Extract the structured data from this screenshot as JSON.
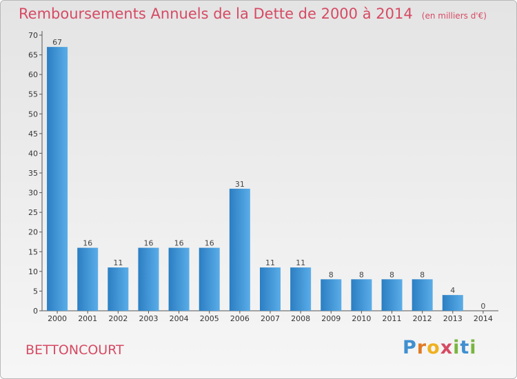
{
  "chart_data": {
    "type": "bar",
    "title": "Remboursements Annuels de la Dette de 2000 à 2014",
    "unit_note": "(en milliers d'€)",
    "categories": [
      "2000",
      "2001",
      "2002",
      "2003",
      "2004",
      "2005",
      "2006",
      "2007",
      "2008",
      "2009",
      "2010",
      "2011",
      "2012",
      "2013",
      "2014"
    ],
    "values": [
      67,
      16,
      11,
      16,
      16,
      16,
      31,
      11,
      11,
      8,
      8,
      8,
      8,
      4,
      0
    ],
    "ylim": [
      0,
      70
    ],
    "yticks": [
      0,
      5,
      10,
      15,
      20,
      25,
      30,
      35,
      40,
      45,
      50,
      55,
      60,
      65,
      70
    ],
    "grid": false,
    "colors": {
      "bar_light": "#5aade8",
      "bar_dark": "#2b7ec2",
      "title": "#d64a63"
    }
  },
  "commune": "BETTONCOURT",
  "logo": {
    "letters": [
      "P",
      "r",
      "o",
      "x",
      "i",
      "t",
      "i"
    ],
    "colors": [
      "#3f8fd0",
      "#e07a25",
      "#f0b020",
      "#d64a63",
      "#7ab540",
      "#3f8fd0",
      "#7ab540"
    ]
  }
}
